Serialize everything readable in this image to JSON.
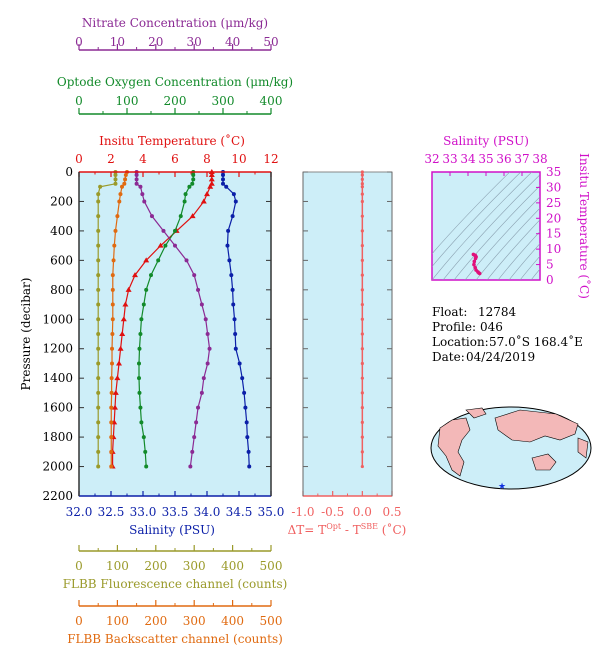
{
  "axes": {
    "nitrate": {
      "title": "Nitrate Concentration (μm/kg)",
      "range": [
        0,
        50
      ],
      "ticks": [
        "0",
        "10",
        "20",
        "30",
        "40",
        "50"
      ],
      "color": "#8b2a94"
    },
    "oxygen": {
      "title": "Optode Oxygen Concentration (μm/kg)",
      "range": [
        0,
        400
      ],
      "ticks": [
        "0",
        "100",
        "200",
        "300",
        "400"
      ],
      "color": "#128a2a"
    },
    "temperature": {
      "title": "Insitu Temperature (˚C)",
      "range": [
        0,
        12
      ],
      "ticks": [
        "0",
        "2",
        "4",
        "6",
        "8",
        "10",
        "12"
      ],
      "color": "#e01010"
    },
    "salinity": {
      "title": "Salinity (PSU)",
      "range": [
        32.0,
        35.0
      ],
      "ticks": [
        "32.0",
        "32.5",
        "33.0",
        "33.5",
        "34.0",
        "34.5",
        "35.0"
      ],
      "color": "#0b1fa8"
    },
    "pressure": {
      "title": "Pressure (decibar)",
      "range": [
        0,
        2200
      ],
      "ticks": [
        "0",
        "200",
        "400",
        "600",
        "800",
        "1000",
        "1200",
        "1400",
        "1600",
        "1800",
        "2000",
        "2200"
      ]
    },
    "fluorescence": {
      "title": "FLBB Fluorescence channel (counts)",
      "range": [
        0,
        500
      ],
      "ticks": [
        "0",
        "100",
        "200",
        "300",
        "400",
        "500"
      ],
      "color": "#9a9a2a"
    },
    "backscatter": {
      "title": "FLBB Backscatter channel (counts)",
      "range": [
        0,
        500
      ],
      "ticks": [
        "0",
        "100",
        "200",
        "300",
        "400",
        "500"
      ],
      "color": "#e06a10"
    },
    "delta_t": {
      "title_pre": "ΔT= T",
      "sup1": "Opt",
      "title_mid": " - T",
      "sup2": "SBE",
      "title_post": " (˚C)",
      "range": [
        -1.0,
        0.5
      ],
      "ticks": [
        "-1.0",
        "-0.5",
        "0.0",
        "0.5"
      ],
      "color": "#f06060"
    },
    "ts_salinity": {
      "title": "Salinity (PSU)",
      "range": [
        32,
        38
      ],
      "ticks": [
        "32",
        "33",
        "34",
        "35",
        "36",
        "37",
        "38"
      ],
      "color": "#d010c8"
    },
    "ts_temperature": {
      "title": "Insitu Temperature (˚C)",
      "range": [
        0,
        35
      ],
      "ticks": [
        "0",
        "5",
        "10",
        "15",
        "20",
        "25",
        "30",
        "35"
      ],
      "color": "#d010c8"
    }
  },
  "info": {
    "float_label": "Float:",
    "float_value": "12784",
    "profile_label": "Profile:",
    "profile_value": "046",
    "location_label": "Location:",
    "location_value": "57.0˚S  168.4˚E",
    "date_label": "Date:",
    "date_value": "04/24/2019"
  },
  "chart_data": {
    "type": "line",
    "pressure": [
      0,
      20,
      50,
      80,
      100,
      150,
      200,
      300,
      400,
      500,
      600,
      700,
      800,
      900,
      1000,
      1100,
      1200,
      1300,
      1400,
      1500,
      1600,
      1700,
      1800,
      1900,
      2000
    ],
    "series": [
      {
        "name": "Salinity (PSU)",
        "axis": "salinity",
        "color": "#0b1fa8",
        "marker": "circle",
        "values": [
          34.25,
          34.25,
          34.25,
          34.25,
          34.3,
          34.42,
          34.45,
          34.4,
          34.33,
          34.32,
          34.35,
          34.38,
          34.4,
          34.41,
          34.43,
          34.44,
          34.45,
          34.51,
          34.55,
          34.58,
          34.6,
          34.62,
          34.63,
          34.65,
          34.66
        ]
      },
      {
        "name": "Insitu Temperature (˚C)",
        "axis": "temperature",
        "color": "#e01010",
        "marker": "triangle",
        "values": [
          8.3,
          8.3,
          8.3,
          8.3,
          8.2,
          8.0,
          7.8,
          7.1,
          6.1,
          5.1,
          4.2,
          3.5,
          3.1,
          2.9,
          2.8,
          2.7,
          2.6,
          2.5,
          2.4,
          2.3,
          2.25,
          2.2,
          2.15,
          2.1,
          2.1
        ]
      },
      {
        "name": "Optode Oxygen Concentration (μm/kg)",
        "axis": "oxygen",
        "color": "#128a2a",
        "marker": "circle",
        "values": [
          238,
          238,
          238,
          236,
          230,
          222,
          220,
          212,
          200,
          180,
          165,
          150,
          140,
          135,
          130,
          128,
          126,
          125,
          125,
          126,
          128,
          130,
          135,
          138,
          140
        ]
      },
      {
        "name": "Nitrate Concentration (μm/kg)",
        "axis": "nitrate",
        "color": "#8b2a94",
        "marker": "circle",
        "values": [
          15,
          15,
          15,
          15,
          16,
          16.5,
          17,
          19,
          22,
          25,
          28,
          30,
          31,
          32,
          33,
          33.5,
          34,
          33.5,
          32.5,
          32,
          31,
          30.5,
          30,
          29.5,
          29
        ]
      },
      {
        "name": "FLBB Fluorescence channel (counts)",
        "axis": "fluorescence",
        "color": "#9a9a2a",
        "marker": "circle",
        "values": [
          95,
          95,
          95,
          95,
          55,
          50,
          50,
          50,
          50,
          50,
          50,
          50,
          50,
          50,
          50,
          50,
          50,
          50,
          50,
          50,
          50,
          50,
          50,
          50,
          50
        ]
      },
      {
        "name": "FLBB Backscatter channel (counts)",
        "axis": "backscatter",
        "color": "#e06a10",
        "marker": "circle",
        "values": [
          125,
          122,
          120,
          118,
          112,
          108,
          105,
          100,
          95,
          92,
          90,
          88,
          88,
          88,
          88,
          87,
          86,
          86,
          85,
          85,
          84,
          84,
          84,
          84,
          84
        ]
      }
    ],
    "delta_t": {
      "color": "#f06060",
      "values": [
        0,
        0,
        0,
        0,
        0,
        0,
        0,
        0,
        0,
        0,
        0,
        0,
        0,
        0,
        0,
        0,
        0,
        0,
        0,
        0,
        0,
        0,
        0,
        0,
        0
      ]
    },
    "ts_profile": {
      "color": "#e0107a",
      "salinity": [
        34.3,
        34.4,
        34.45,
        34.42,
        34.35,
        34.33,
        34.4,
        34.45,
        34.55,
        34.6,
        34.65
      ],
      "temperature": [
        8.3,
        8.0,
        7.5,
        7.0,
        6.0,
        5.0,
        4.0,
        3.2,
        2.6,
        2.3,
        2.1
      ]
    }
  }
}
